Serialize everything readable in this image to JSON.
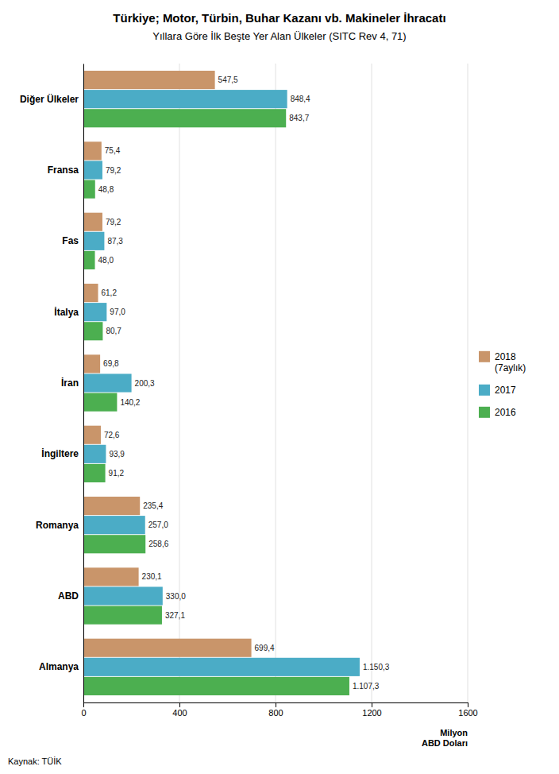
{
  "chart_data": {
    "type": "bar",
    "orientation": "horizontal",
    "title": "Türkiye; Motor, Türbin, Buhar Kazanı vb. Makineler İhracatı",
    "subtitle": "Yıllara Göre İlk Beşte Yer Alan Ülkeler (SITC Rev 4, 71)",
    "xlabel": "Milyon\nABD Doları",
    "annotations": [
      "Kaynak: TÜİK"
    ],
    "categories": [
      "Almanya",
      "ABD",
      "Romanya",
      "İngiltere",
      "İran",
      "İtalya",
      "Fas",
      "Fransa",
      "Diğer Ülkeler"
    ],
    "series": [
      {
        "name": "2018\n(7aylık)",
        "color": "#C9956A",
        "values": [
          699.4,
          230.1,
          235.4,
          72.6,
          69.8,
          61.2,
          79.2,
          75.4,
          547.5
        ],
        "value_labels": [
          "699,4",
          "230,1",
          "235,4",
          "72,6",
          "69,8",
          "61,2",
          "79,2",
          "75,4",
          "547,5"
        ]
      },
      {
        "name": "2017",
        "color": "#4BACC6",
        "values": [
          1150.3,
          330.0,
          257.0,
          93.9,
          200.3,
          97.0,
          87.3,
          79.2,
          848.4
        ],
        "value_labels": [
          "1.150,3",
          "330,0",
          "257,0",
          "93,9",
          "200,3",
          "97,0",
          "87,3",
          "79,2",
          "848,4"
        ]
      },
      {
        "name": "2016",
        "color": "#4CAF50",
        "values": [
          1107.3,
          327.1,
          258.6,
          91.2,
          140.2,
          80.7,
          48.0,
          48.8,
          843.7
        ],
        "value_labels": [
          "1.107,3",
          "327,1",
          "258,6",
          "91,2",
          "140,2",
          "80,7",
          "48,0",
          "48,8",
          "843,7"
        ]
      }
    ],
    "xlim": [
      0,
      1600
    ],
    "xticks": [
      0,
      400,
      800,
      1200,
      1600
    ],
    "grid": true,
    "legend": "right",
    "data_labels": true
  }
}
